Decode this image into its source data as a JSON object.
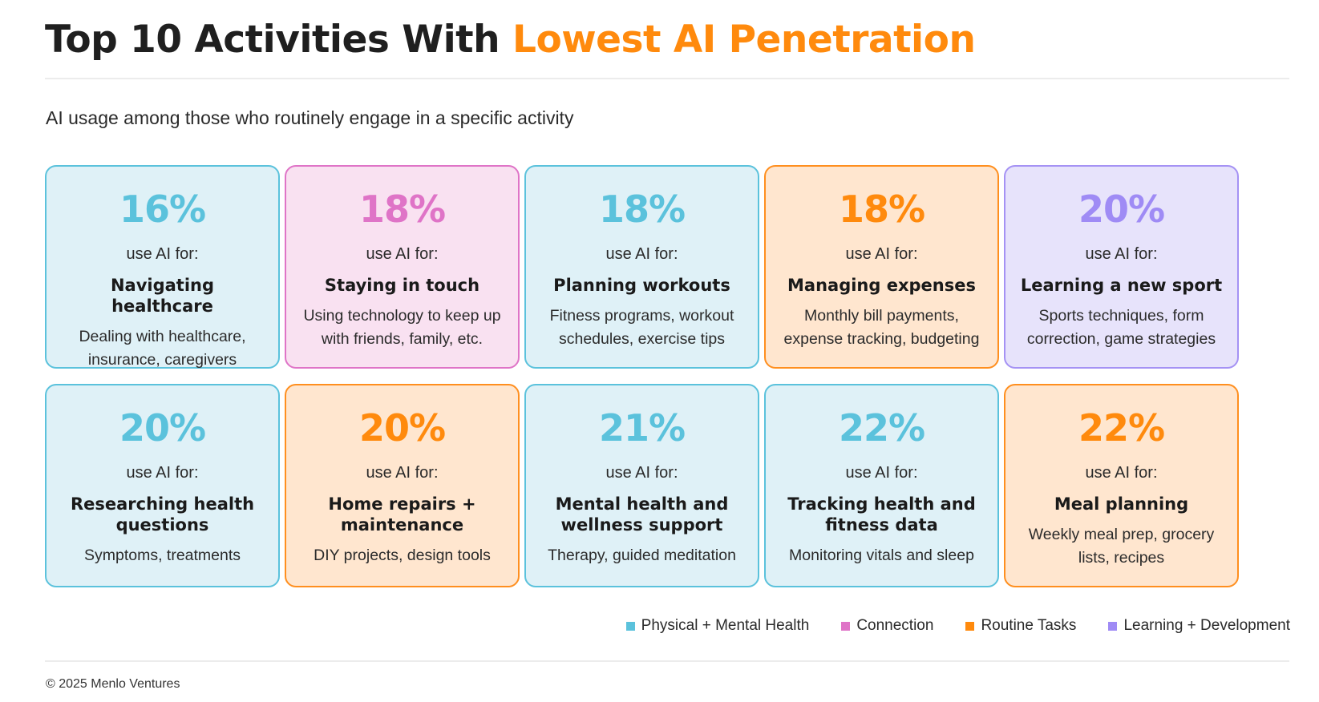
{
  "header": {
    "title_plain": "Top 10 Activities With",
    "title_accent": "Lowest AI Penetration",
    "subtitle": "AI usage among those who routinely engage in a specific activity"
  },
  "colors": {
    "accent": "#ff8a0d",
    "health": "#5bc2dc",
    "connection": "#df74c7",
    "routine": "#ff8a0d",
    "learning": "#9f8bf5"
  },
  "chart_data": {
    "type": "table",
    "title": "Top 10 Activities With Lowest AI Penetration",
    "subtitle": "AI usage among those who routinely engage in a specific activity",
    "unit": "%",
    "items": [
      {
        "value": 16,
        "pct": "16%",
        "use": "use AI for:",
        "activity": "Navigating healthcare",
        "detail": "Dealing with healthcare, insurance, caregivers",
        "category": "health"
      },
      {
        "value": 18,
        "pct": "18%",
        "use": "use AI for:",
        "activity": "Staying in touch",
        "detail": "Using technology to keep up with friends, family, etc.",
        "category": "connection"
      },
      {
        "value": 18,
        "pct": "18%",
        "use": "use AI for:",
        "activity": "Planning workouts",
        "detail": "Fitness programs, workout schedules, exercise tips",
        "category": "health"
      },
      {
        "value": 18,
        "pct": "18%",
        "use": "use AI for:",
        "activity": "Managing expenses",
        "detail": "Monthly bill payments, expense tracking, budgeting",
        "category": "routine"
      },
      {
        "value": 20,
        "pct": "20%",
        "use": "use AI for:",
        "activity": "Learning a new sport",
        "detail": "Sports techniques, form correction, game strategies",
        "category": "learning"
      },
      {
        "value": 20,
        "pct": "20%",
        "use": "use AI for:",
        "activity": "Researching health questions",
        "detail": "Symptoms, treatments",
        "category": "health"
      },
      {
        "value": 20,
        "pct": "20%",
        "use": "use AI for:",
        "activity": "Home repairs + maintenance",
        "detail": "DIY projects, design tools",
        "category": "routine"
      },
      {
        "value": 21,
        "pct": "21%",
        "use": "use AI for:",
        "activity": "Mental health and wellness support",
        "detail": "Therapy, guided meditation",
        "category": "health"
      },
      {
        "value": 22,
        "pct": "22%",
        "use": "use AI for:",
        "activity": "Tracking health and fitness data",
        "detail": "Monitoring vitals and sleep",
        "category": "health"
      },
      {
        "value": 22,
        "pct": "22%",
        "use": "use AI for:",
        "activity": "Meal planning",
        "detail": "Weekly meal prep, grocery lists, recipes",
        "category": "routine"
      }
    ],
    "legend": [
      {
        "key": "health",
        "label": "Physical + Mental Health",
        "color": "#5bc2dc"
      },
      {
        "key": "connection",
        "label": "Connection",
        "color": "#df74c7"
      },
      {
        "key": "routine",
        "label": "Routine Tasks",
        "color": "#ff8a0d"
      },
      {
        "key": "learning",
        "label": "Learning + Development",
        "color": "#9f8bf5"
      }
    ],
    "legend_position": "bottom-right"
  },
  "footer": {
    "copyright": "© 2025 Menlo Ventures"
  }
}
